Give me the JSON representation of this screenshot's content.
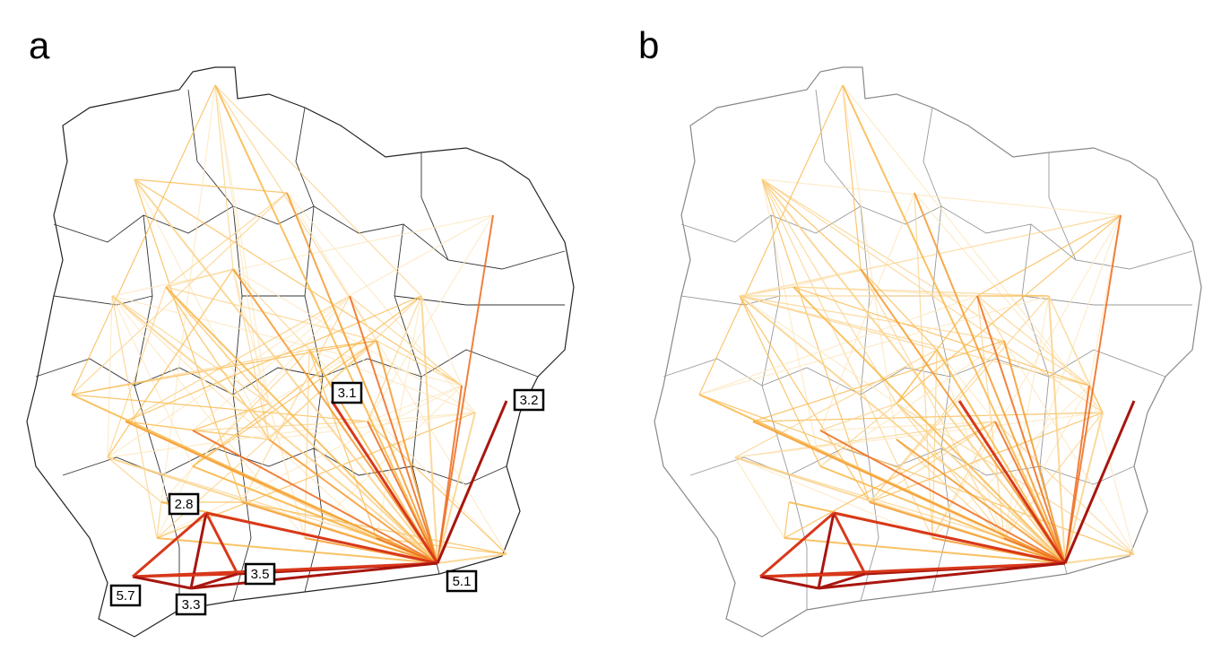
{
  "panels": [
    {
      "title": "a",
      "labels": [
        3.1,
        3.2,
        2.8,
        3.5,
        5.7,
        3.3,
        5.1
      ]
    },
    {
      "title": "b"
    }
  ]
}
